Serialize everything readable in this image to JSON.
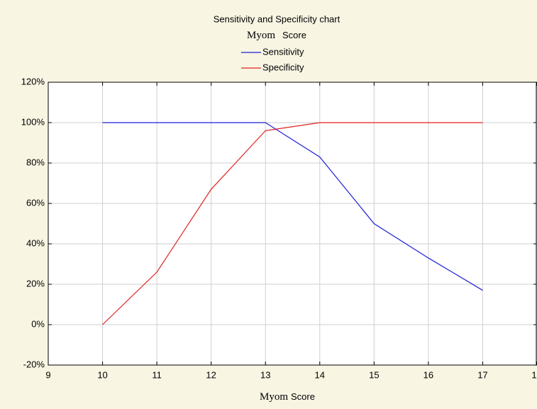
{
  "chart_data": {
    "type": "line",
    "title": "Sensitivity and Specificity chart",
    "subtitle": [
      "Myom",
      "Score"
    ],
    "x_label": [
      "Myom",
      "Score"
    ],
    "x": [
      10,
      11,
      12,
      13,
      14,
      15,
      16,
      17
    ],
    "series": [
      {
        "name": "Sensitivity",
        "color": "#1f1fd6",
        "values": [
          100,
          100,
          100,
          100,
          83,
          50,
          33,
          17
        ]
      },
      {
        "name": "Specificity",
        "color": "#e02020",
        "values": [
          0,
          26,
          67,
          96,
          100,
          100,
          100,
          100
        ]
      }
    ],
    "xlim": [
      9,
      18
    ],
    "xticks": [
      9,
      10,
      11,
      12,
      13,
      14,
      15,
      16,
      17,
      {
        "value": 18,
        "label": "1"
      }
    ],
    "ylim": [
      -20,
      120
    ],
    "yticks": [
      {
        "value": -20,
        "label": "-20%"
      },
      {
        "value": 0,
        "label": "0%"
      },
      {
        "value": 20,
        "label": "20%"
      },
      {
        "value": 40,
        "label": "40%"
      },
      {
        "value": 60,
        "label": "60%"
      },
      {
        "value": 80,
        "label": "80%"
      },
      {
        "value": 100,
        "label": "100%"
      },
      {
        "value": 120,
        "label": "120%"
      }
    ],
    "grid": true
  }
}
